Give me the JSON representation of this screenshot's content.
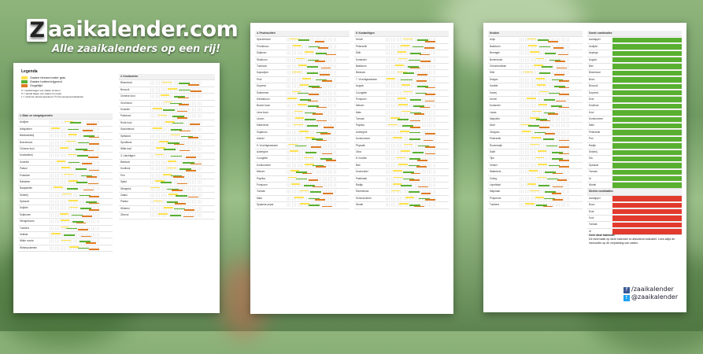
{
  "logo": {
    "word": "aaikalender.com",
    "letter": "Z",
    "tagline": "Alle zaaikalenders op een rij!"
  },
  "colors": {
    "yellow": "#ffe14a",
    "green": "#59b030",
    "orange": "#e07a22",
    "red": "#e23b2e"
  },
  "legend": {
    "title": "Legenda",
    "items": [
      "Zaaien binnen/onder glas",
      "Zaaien buiten/vrijgrond",
      "Oogsttijd"
    ],
    "notes": [
      "K = aantal dagen van zaaien tot kiem",
      "O = aantal dagen van zaaien tot oogst",
      "L = minimum kiemtemperatuur (ºC) bij verspenen/uitplanten"
    ]
  },
  "sheet1": {
    "col1": {
      "header": "1. Blad- en stengelgroenten",
      "rows": [
        "Andijvie",
        "Artisjokken",
        "Bleekselderij",
        "Boerenkool",
        "Chinese kool",
        "Knolselderij",
        "Koolrabi",
        "Paksoi",
        "Postelein",
        "Rabarber",
        "Raapstelen",
        "Selderij",
        "Spinazie",
        "Snijbiet",
        "Snijbonen",
        "Stengelmoes",
        "Tuinkers",
        "Veldsla",
        "Wilde rucola",
        "Winterpostelein"
      ]
    },
    "col2": {
      "header": "2. Koolsoorten",
      "rows": [
        "Bloemkool",
        "Broccoli",
        "Chinese kool",
        "Groenkool",
        "Koolrabi",
        "Palmkool",
        "Rode kool",
        "Savooiekool",
        "Spitskool",
        "Spruitkool",
        "Witte kool",
        "3. Uiachtigen",
        "Bieslook",
        "Knoflook",
        "Prei",
        "Sjalot",
        "Stengelui",
        "Zaaiui",
        "Plantui",
        "Winterui",
        "Zilverui"
      ]
    }
  },
  "sheet2": {
    "col1": {
      "header": "4. Peulvruchten",
      "rows": [
        "Sperzieboon",
        "Pronkboon",
        "Snijboon",
        "Stokboon",
        "Tuinboon",
        "Kapucijner",
        "Peul",
        "Doperwt",
        "Suikererwt",
        "Kievitsboon",
        "Bruine boon",
        "Lima boon",
        "Linzen",
        "Kikkererwt",
        "Sojaboon",
        "Adzuki",
        "5. Vruchtgewassen",
        "Aubergine",
        "Courgette",
        "Komkommer",
        "Meloen",
        "Paprika",
        "Pompoen",
        "Tomaat",
        "Maïs",
        "Spaanse peper"
      ]
    },
    "col2": {
      "header": "6. Koolachtigen",
      "rows": [
        "Kervel",
        "Peterselie",
        "Dille",
        "Koriander",
        "Basilicum",
        "Bieslook",
        "7. Vruchtgewassen",
        "Augurk",
        "Courgette",
        "Pompoen",
        "Meloen",
        "Mais",
        "Tomaat",
        "Paprika",
        "Aubergine",
        "Komkommer",
        "Physalis",
        "Okra",
        "8. Knollen",
        "Biet",
        "Knolvenkel",
        "Pastinaak",
        "Radijs",
        "Rammenas",
        "Schorseneren",
        "Wortel"
      ]
    }
  },
  "sheet3": {
    "col1": {
      "header": "Kruiden",
      "rows": [
        "Anijs",
        "Basilicum",
        "Bernagie",
        "Bonenkruid",
        "Citroenmelisse",
        "Dille",
        "Dragon",
        "Kamille",
        "Karwij",
        "Kervel",
        "Koriander",
        "Lavas",
        "Marjolein",
        "Munt",
        "Oregano",
        "Peterselie",
        "Rozemarijn",
        "Salie",
        "Tijm",
        "Venkel",
        "Waterkers",
        "Zuring",
        "Lepelblad",
        "Majoraan",
        "Pimpernel",
        "Tuinkers"
      ]
    },
    "col2": {
      "header": "Goede combinaties",
      "rows": [
        "Aardappel",
        "Andijvie",
        "Asperge",
        "Augurk",
        "Biet",
        "Bloemkool",
        "Boon",
        "Broccoli",
        "Doperwt",
        "Erwt",
        "Knoflook",
        "Kool",
        "Komkommer",
        "Maïs",
        "Peterselie",
        "Prei",
        "Radijs",
        "Selderij",
        "Sla",
        "Spinazie",
        "Tomaat",
        "Ui",
        "Wortel"
      ],
      "bad_header": "Slechte combinaties",
      "bad_rows": [
        "Aardappel",
        "Boon",
        "Erwt",
        "Kool",
        "Tomaat",
        "Ui"
      ]
    },
    "about_title": "Over deze kalender",
    "about_text": "De informatie op deze kalender is uitsluitend indicatief. Lees altijd de instructies op de verpakking van zaden.",
    "social": [
      "/zaaikalender",
      "@zaaikalender"
    ]
  }
}
